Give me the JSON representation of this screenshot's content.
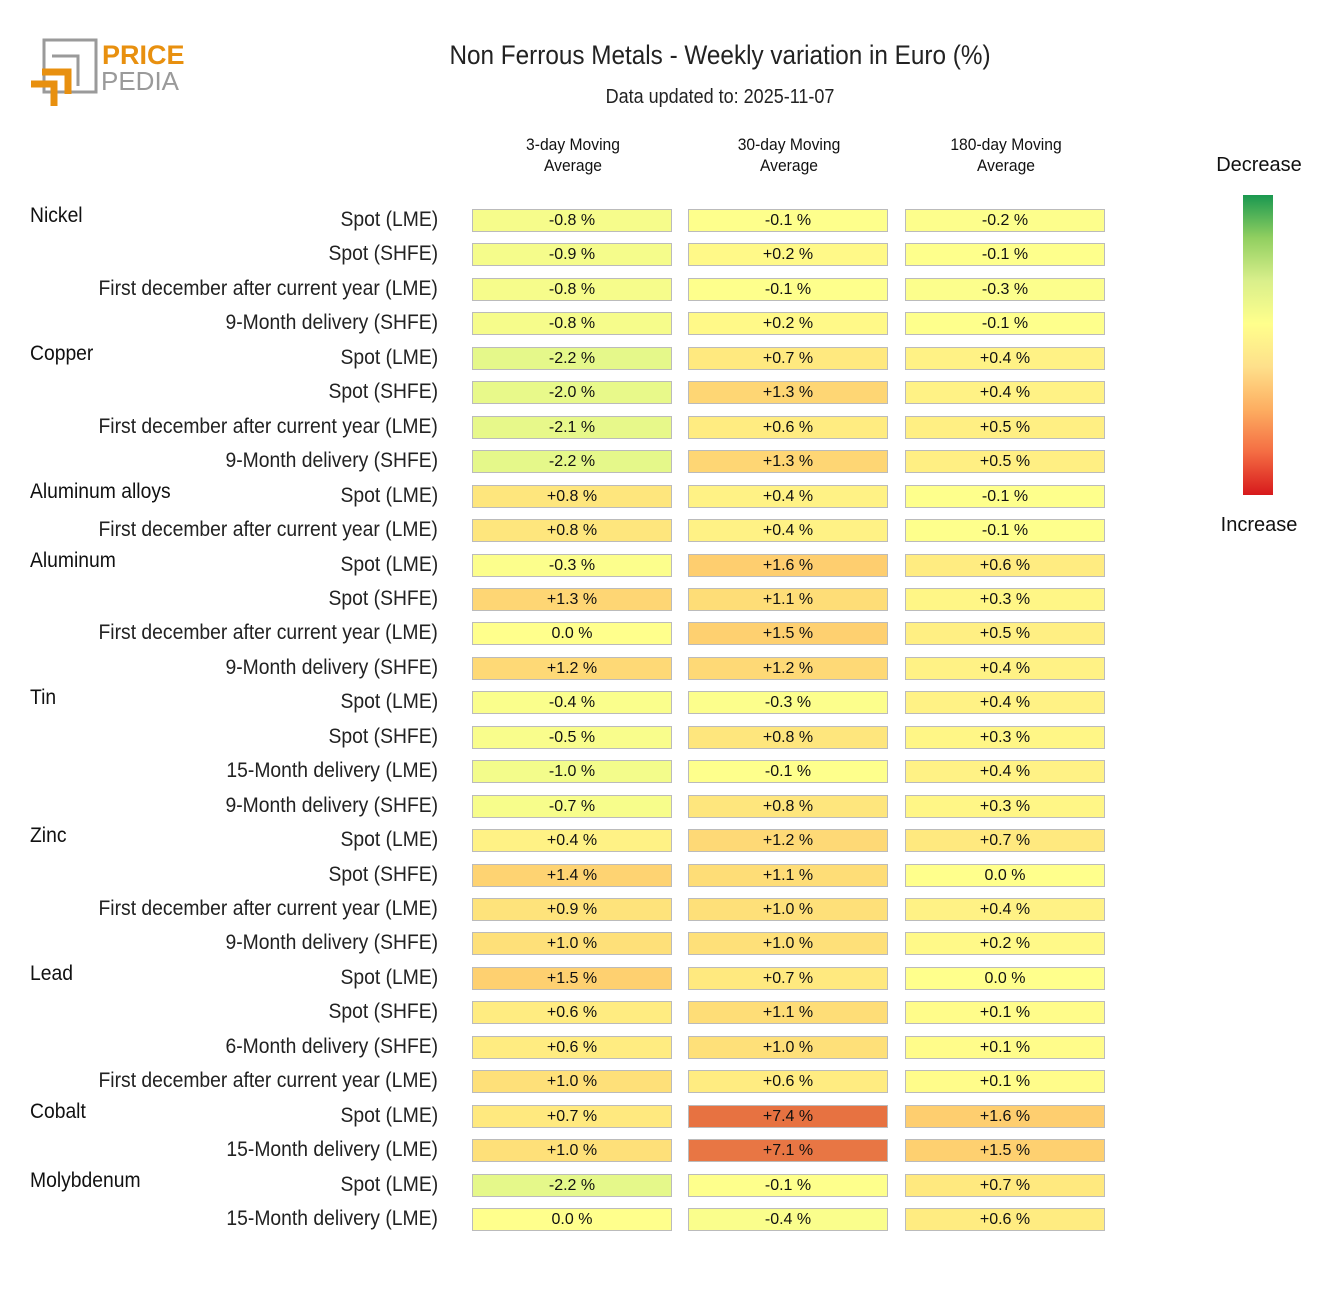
{
  "title": "Non Ferrous Metals - Weekly variation in Euro (%)",
  "subtitle": "Data updated to: 2025-11-07",
  "logo": {
    "line1": "PRICE",
    "line2": "PEDIA",
    "colors": {
      "orange": "#e8900f",
      "gray": "#9a9a9a"
    }
  },
  "legend": {
    "top": "Decrease",
    "bottom": "Increase",
    "colors": [
      "#1a9850",
      "#91cf60",
      "#d9ef8b",
      "#ffff8c",
      "#fee08b",
      "#fdae61",
      "#f46d43",
      "#d7191c"
    ]
  },
  "chart_data": {
    "type": "heatmap",
    "title": "Non Ferrous Metals - Weekly variation in Euro (%)",
    "columns": [
      "3-day Moving Average",
      "30-day Moving Average",
      "180-day Moving Average"
    ],
    "column_lines": [
      [
        "3-day Moving",
        "Average"
      ],
      [
        "30-day Moving",
        "Average"
      ],
      [
        "180-day Moving",
        "Average"
      ]
    ],
    "unit": "%",
    "groups": [
      {
        "name": "Nickel",
        "rows": [
          {
            "label": "Spot (LME)",
            "values": [
              -0.8,
              -0.1,
              -0.2
            ]
          },
          {
            "label": "Spot (SHFE)",
            "values": [
              -0.9,
              0.2,
              -0.1
            ]
          },
          {
            "label": "First december after current year (LME)",
            "values": [
              -0.8,
              -0.1,
              -0.3
            ]
          },
          {
            "label": "9-Month delivery (SHFE)",
            "values": [
              -0.8,
              0.2,
              -0.1
            ]
          }
        ]
      },
      {
        "name": "Copper",
        "rows": [
          {
            "label": "Spot (LME)",
            "values": [
              -2.2,
              0.7,
              0.4
            ]
          },
          {
            "label": "Spot (SHFE)",
            "values": [
              -2.0,
              1.3,
              0.4
            ]
          },
          {
            "label": "First december after current year (LME)",
            "values": [
              -2.1,
              0.6,
              0.5
            ]
          },
          {
            "label": "9-Month delivery (SHFE)",
            "values": [
              -2.2,
              1.3,
              0.5
            ]
          }
        ]
      },
      {
        "name": "Aluminum alloys",
        "rows": [
          {
            "label": "Spot (LME)",
            "values": [
              0.8,
              0.4,
              -0.1
            ]
          },
          {
            "label": "First december after current year (LME)",
            "values": [
              0.8,
              0.4,
              -0.1
            ]
          }
        ]
      },
      {
        "name": "Aluminum",
        "rows": [
          {
            "label": "Spot (LME)",
            "values": [
              -0.3,
              1.6,
              0.6
            ]
          },
          {
            "label": "Spot (SHFE)",
            "values": [
              1.3,
              1.1,
              0.3
            ]
          },
          {
            "label": "First december after current year (LME)",
            "values": [
              0.0,
              1.5,
              0.5
            ]
          },
          {
            "label": "9-Month delivery (SHFE)",
            "values": [
              1.2,
              1.2,
              0.4
            ]
          }
        ]
      },
      {
        "name": "Tin",
        "rows": [
          {
            "label": "Spot (LME)",
            "values": [
              -0.4,
              -0.3,
              0.4
            ]
          },
          {
            "label": "Spot (SHFE)",
            "values": [
              -0.5,
              0.8,
              0.3
            ]
          },
          {
            "label": "15-Month delivery (LME)",
            "values": [
              -1.0,
              -0.1,
              0.4
            ]
          },
          {
            "label": "9-Month delivery (SHFE)",
            "values": [
              -0.7,
              0.8,
              0.3
            ]
          }
        ]
      },
      {
        "name": "Zinc",
        "rows": [
          {
            "label": "Spot (LME)",
            "values": [
              0.4,
              1.2,
              0.7
            ]
          },
          {
            "label": "Spot (SHFE)",
            "values": [
              1.4,
              1.1,
              0.0
            ]
          },
          {
            "label": "First december after current year (LME)",
            "values": [
              0.9,
              1.0,
              0.4
            ]
          },
          {
            "label": "9-Month delivery (SHFE)",
            "values": [
              1.0,
              1.0,
              0.2
            ]
          }
        ]
      },
      {
        "name": "Lead",
        "rows": [
          {
            "label": "Spot (LME)",
            "values": [
              1.5,
              0.7,
              0.0
            ]
          },
          {
            "label": "Spot (SHFE)",
            "values": [
              0.6,
              1.1,
              0.1
            ]
          },
          {
            "label": "6-Month delivery (SHFE)",
            "values": [
              0.6,
              1.0,
              0.1
            ]
          },
          {
            "label": "First december after current year (LME)",
            "values": [
              1.0,
              0.6,
              0.1
            ]
          }
        ]
      },
      {
        "name": "Cobalt",
        "rows": [
          {
            "label": "Spot (LME)",
            "values": [
              0.7,
              7.4,
              1.6
            ]
          },
          {
            "label": "15-Month delivery (LME)",
            "values": [
              1.0,
              7.1,
              1.5
            ]
          }
        ]
      },
      {
        "name": "Molybdenum",
        "rows": [
          {
            "label": "Spot (LME)",
            "values": [
              -2.2,
              -0.1,
              0.7
            ]
          },
          {
            "label": "15-Month delivery (LME)",
            "values": [
              0.0,
              -0.4,
              0.6
            ]
          }
        ]
      }
    ]
  }
}
